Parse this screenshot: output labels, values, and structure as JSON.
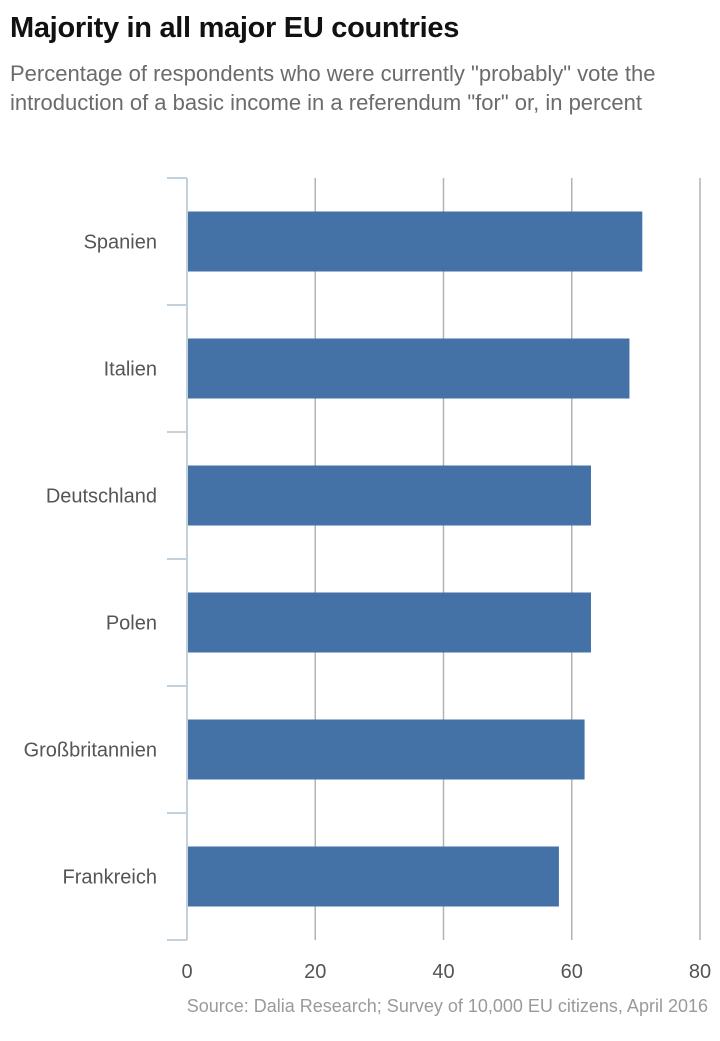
{
  "title": "Majority in all major EU countries",
  "subtitle": "Percentage of respondents who were currently \"probably\" vote the introduction of a basic income in a referendum \"for\" or, in percent",
  "source": "Source: Dalia Research; Survey of 10,000 EU citizens, April 2016",
  "colors": {
    "bar": "#4472a6",
    "grid": "#b3b3b3",
    "axis": "#c3d1dc",
    "label": "#555555"
  },
  "chart_data": {
    "type": "bar",
    "orientation": "horizontal",
    "categories": [
      "Spanien",
      "Italien",
      "Deutschland",
      "Polen",
      "Großbritannien",
      "Frankreich"
    ],
    "values": [
      71,
      69,
      63,
      63,
      62,
      58
    ],
    "xlim": [
      0,
      80
    ],
    "xticks": [
      0,
      20,
      40,
      60,
      80
    ],
    "grid": true,
    "legend": "none"
  }
}
